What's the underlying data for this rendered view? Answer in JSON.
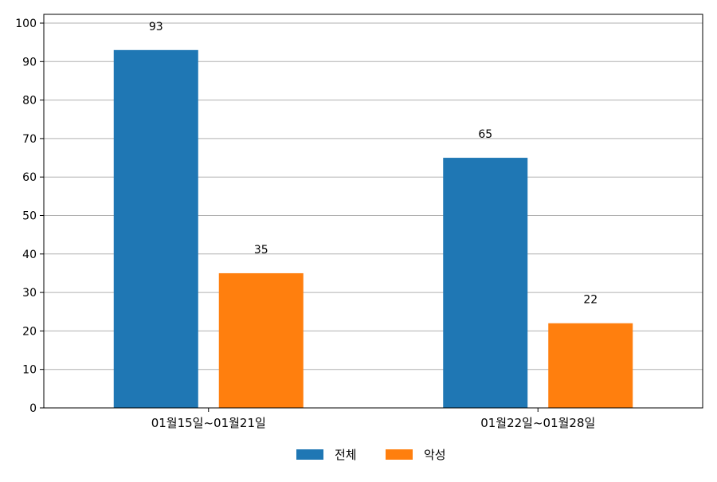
{
  "chart_data": {
    "type": "bar",
    "categories": [
      "01월15일~01월21일",
      "01월22일~01월28일"
    ],
    "series": [
      {
        "name": "전체",
        "values": [
          93,
          65
        ],
        "color": "#1f77b4"
      },
      {
        "name": "악성",
        "values": [
          35,
          22
        ],
        "color": "#ff7f0e"
      }
    ],
    "ylim": [
      0,
      100
    ],
    "yticks": [
      0,
      10,
      20,
      30,
      40,
      50,
      60,
      70,
      80,
      90,
      100
    ],
    "grid": "horizontal",
    "legend_position": "bottom-center"
  }
}
